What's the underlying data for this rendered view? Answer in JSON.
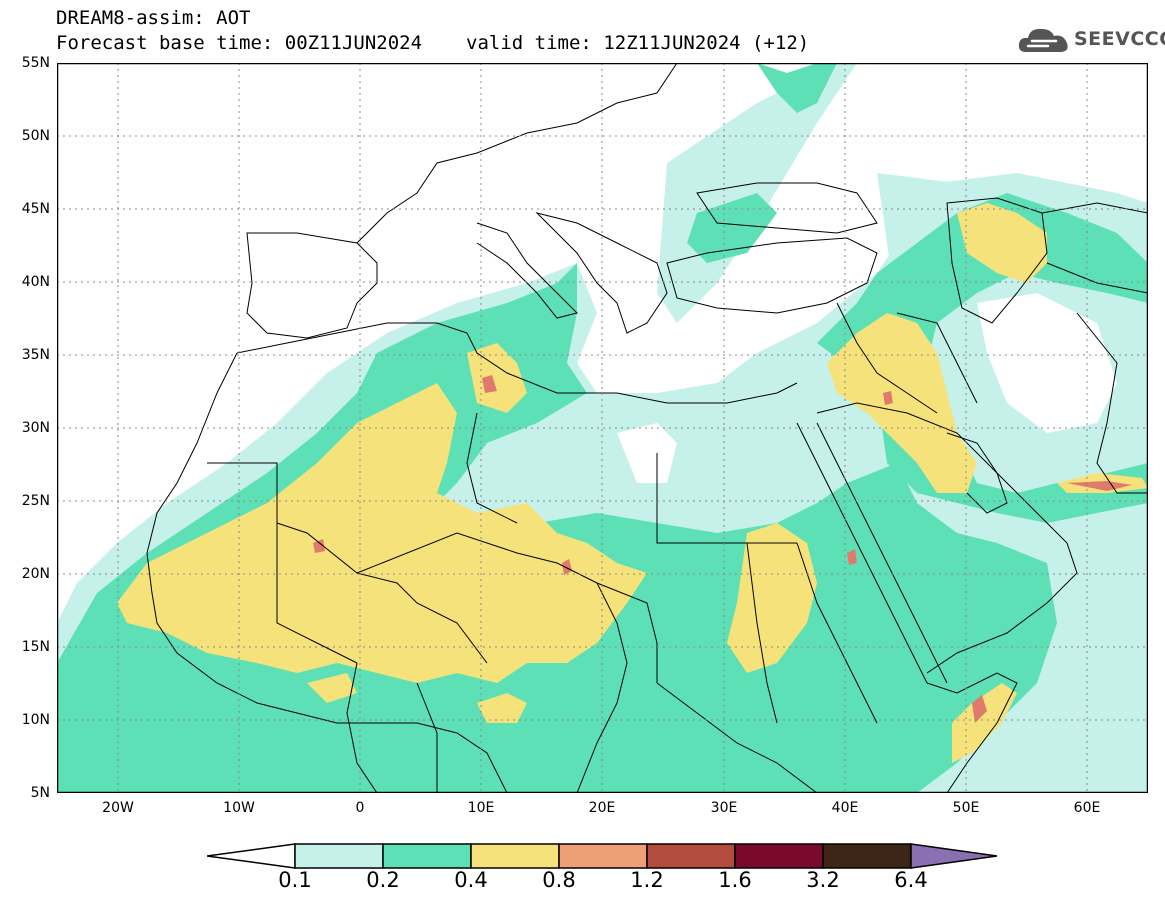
{
  "header": {
    "line1": "DREAM8-assim: AOT",
    "base_time": "Forecast base time: 00Z11JUN2024",
    "valid_time": "valid time: 12Z11JUN2024 (+12)"
  },
  "logo": {
    "text": "SEEVCCC",
    "icon": "cloud-logo-icon"
  },
  "axes": {
    "lat_labels": [
      "55N",
      "50N",
      "45N",
      "40N",
      "35N",
      "30N",
      "25N",
      "20N",
      "15N",
      "10N",
      "5N"
    ],
    "lon_labels": [
      "20W",
      "10W",
      "0",
      "10E",
      "20E",
      "30E",
      "40E",
      "50E",
      "60E"
    ]
  },
  "colorbar": {
    "levels": [
      "0.1",
      "0.2",
      "0.4",
      "0.8",
      "1.2",
      "1.6",
      "3.2",
      "6.4"
    ],
    "colors": [
      "#c6f1ea",
      "#5ee0b7",
      "#f6e27a",
      "#ef9f76",
      "#b24c3f",
      "#7a0a2c",
      "#3d2616",
      "#8a6fb3"
    ]
  },
  "map": {
    "land_color": "#ffffff",
    "border_color": "#000000",
    "aot_field_colors": {
      "light": "#c6f1ea",
      "green": "#5ee0b7",
      "yellow": "#f6e27a",
      "orange": "#ef9f76",
      "red": "#e07a6c"
    }
  }
}
